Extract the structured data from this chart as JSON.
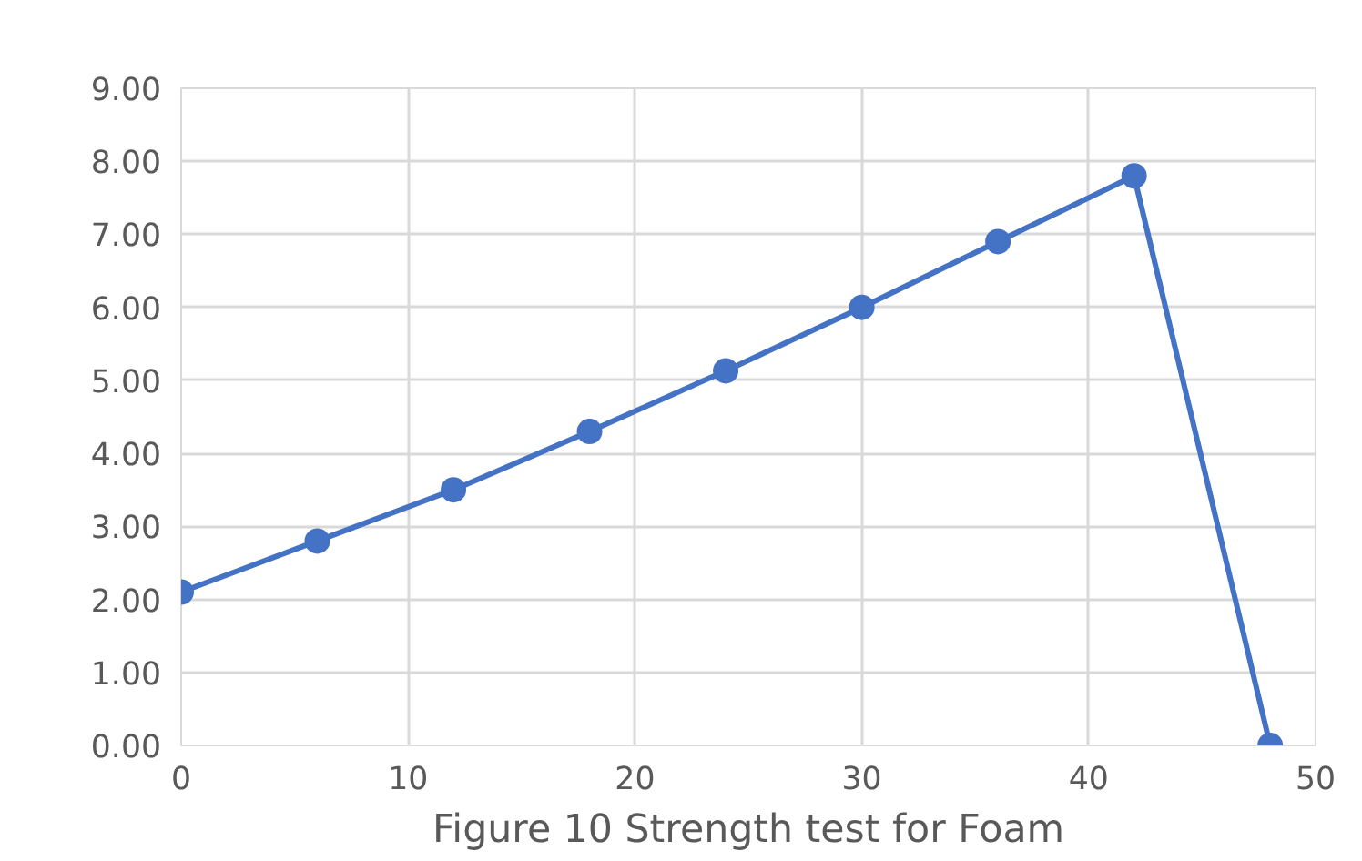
{
  "chart_data": {
    "type": "line",
    "title": "Figure 10 Strength test for Foam",
    "x": [
      0,
      6,
      12,
      18,
      24,
      30,
      36,
      42,
      48
    ],
    "series": [
      {
        "color": "#4472c4",
        "values": [
          2.1,
          2.8,
          3.5,
          4.3,
          5.13,
          6.0,
          6.9,
          7.8,
          0.0
        ]
      }
    ],
    "xlim": [
      0,
      50
    ],
    "xticks": [
      0,
      10,
      20,
      30,
      40,
      50
    ],
    "ylim": [
      0,
      9
    ],
    "yticks": [
      {
        "value": 0,
        "label": "0.00"
      },
      {
        "value": 1,
        "label": "1.00"
      },
      {
        "value": 2,
        "label": "2.00"
      },
      {
        "value": 3,
        "label": "3.00"
      },
      {
        "value": 4,
        "label": "4.00"
      },
      {
        "value": 5,
        "label": "5.00"
      },
      {
        "value": 6,
        "label": "6.00"
      },
      {
        "value": 7,
        "label": "7.00"
      },
      {
        "value": 8,
        "label": "8.00"
      },
      {
        "value": 9,
        "label": "9.00"
      }
    ],
    "grid": true,
    "marker": "circle",
    "line_style": "solid"
  }
}
